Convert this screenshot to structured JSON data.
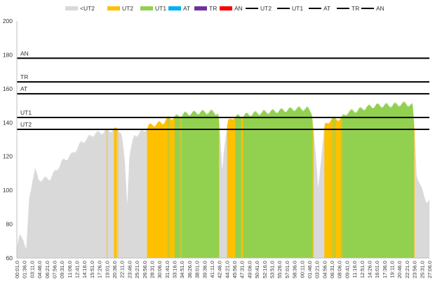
{
  "chart_data": {
    "type": "area",
    "ylim": [
      60,
      200
    ],
    "y_ticks": [
      60,
      80,
      100,
      120,
      140,
      160,
      180,
      200
    ],
    "grid": false,
    "legend_position": "top",
    "x_tick_labels": [
      "00:01.0",
      "01:36.0",
      "03:11.0",
      "04:46.0",
      "06:21.0",
      "07:56.0",
      "09:31.0",
      "11:06.0",
      "12:41.0",
      "14:16.0",
      "15:51.0",
      "17:26.0",
      "19:01.0",
      "20:36.0",
      "22:11.0",
      "23:46.0",
      "25:21.0",
      "26:56.0",
      "28:31.0",
      "30:06.0",
      "31:41.0",
      "33:16.0",
      "34:51.0",
      "36:26.0",
      "38:01.0",
      "39:36.0",
      "41:11.0",
      "42:46.0",
      "44:21.0",
      "45:56.0",
      "47:31.0",
      "49:06.0",
      "50:41.0",
      "52:16.0",
      "53:51.0",
      "55:26.0",
      "57:01.0",
      "58:36.0",
      "00:11.0",
      "01:46.0",
      "03:21.0",
      "04:56.0",
      "06:31.0",
      "08:06.0",
      "09:41.0",
      "11:16.0",
      "12:51.0",
      "14:26.0",
      "16:01.0",
      "17:36.0",
      "19:11.0",
      "20:46.0",
      "22:21.0",
      "23:56.0",
      "25:31.0",
      "27:06.0"
    ],
    "legend": [
      {
        "label": "<UT2",
        "kind": "area",
        "color": "#d9d9d9"
      },
      {
        "label": "UT2",
        "kind": "area",
        "color": "#ffc000"
      },
      {
        "label": "UT1",
        "kind": "area",
        "color": "#92d050"
      },
      {
        "label": "AT",
        "kind": "area",
        "color": "#00b0f0"
      },
      {
        "label": "TR",
        "kind": "area",
        "color": "#7030a0"
      },
      {
        "label": "AN",
        "kind": "area",
        "color": "#ff0000"
      },
      {
        "label": "UT2",
        "kind": "line",
        "color": "#000000"
      },
      {
        "label": "UT1",
        "kind": "line",
        "color": "#000000"
      },
      {
        "label": "AT",
        "kind": "line",
        "color": "#000000"
      },
      {
        "label": "TR",
        "kind": "line",
        "color": "#000000"
      },
      {
        "label": "AN",
        "kind": "line",
        "color": "#000000"
      }
    ],
    "thresholds": [
      {
        "label": "UT2",
        "value": 136
      },
      {
        "label": "UT1",
        "value": 143
      },
      {
        "label": "AT",
        "value": 157
      },
      {
        "label": "TR",
        "value": 164
      },
      {
        "label": "AN",
        "value": 178
      }
    ],
    "series_profile": [
      [
        0,
        65
      ],
      [
        0.6,
        73
      ],
      [
        1.3,
        72
      ],
      [
        2.0,
        64
      ],
      [
        2.6,
        95
      ],
      [
        3.4,
        108
      ],
      [
        3.8,
        112
      ],
      [
        4.5,
        106
      ],
      [
        7.0,
        107
      ],
      [
        9.5,
        117
      ],
      [
        11.5,
        121
      ],
      [
        13.5,
        128
      ],
      [
        16.0,
        133
      ],
      [
        17.5,
        134
      ],
      [
        19.0,
        135
      ],
      [
        21.0,
        136
      ],
      [
        21.8,
        134
      ],
      [
        22.5,
        116
      ],
      [
        23.0,
        90
      ],
      [
        23.5,
        121
      ],
      [
        24.5,
        132
      ],
      [
        26.5,
        135
      ],
      [
        27.5,
        138
      ],
      [
        29.0,
        139
      ],
      [
        30.5,
        140
      ],
      [
        31.5,
        142
      ],
      [
        33.0,
        143
      ],
      [
        35.0,
        145
      ],
      [
        38.0,
        146
      ],
      [
        41.0,
        146
      ],
      [
        42.0,
        145
      ],
      [
        42.4,
        130
      ],
      [
        42.8,
        110
      ],
      [
        43.2,
        125
      ],
      [
        44.0,
        140
      ],
      [
        45.0,
        143
      ],
      [
        47.0,
        144
      ],
      [
        49.0,
        145
      ],
      [
        52.0,
        146
      ],
      [
        55.0,
        147
      ],
      [
        58.0,
        148
      ],
      [
        60.5,
        148
      ],
      [
        61.5,
        146
      ],
      [
        62.3,
        120
      ],
      [
        62.8,
        100
      ],
      [
        63.3,
        115
      ],
      [
        64.2,
        138
      ],
      [
        65.5,
        142
      ],
      [
        67.5,
        142
      ],
      [
        69.0,
        146
      ],
      [
        71.0,
        147
      ],
      [
        73.0,
        149
      ],
      [
        75.0,
        150
      ],
      [
        78.0,
        150
      ],
      [
        81.0,
        151
      ],
      [
        82.5,
        150
      ],
      [
        83.0,
        130
      ],
      [
        83.3,
        110
      ],
      [
        84.0,
        103
      ],
      [
        85.5,
        93
      ],
      [
        86.0,
        93
      ]
    ]
  }
}
